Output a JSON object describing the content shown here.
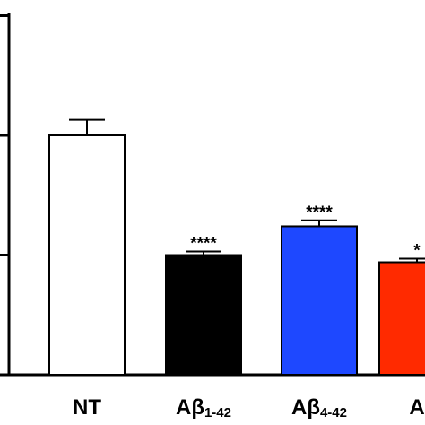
{
  "chart_data": {
    "type": "bar",
    "categories": [
      {
        "main": "NT",
        "sub": ""
      },
      {
        "main": "Aβ",
        "sub": "1-42"
      },
      {
        "main": "Aβ",
        "sub": "4-42"
      },
      {
        "main": "A",
        "sub": ""
      }
    ],
    "values": [
      100,
      50,
      62,
      47
    ],
    "errors": [
      6.5,
      1.5,
      2.5,
      1.5
    ],
    "colors": [
      "#ffffff",
      "#000000",
      "#1e48ff",
      "#ff2a00"
    ],
    "significance": [
      "",
      "****",
      "****",
      "*"
    ],
    "ylim": [
      0,
      157
    ],
    "y_ticks": [
      0,
      50,
      100,
      150
    ],
    "title": "",
    "xlabel": "",
    "ylabel": ""
  }
}
